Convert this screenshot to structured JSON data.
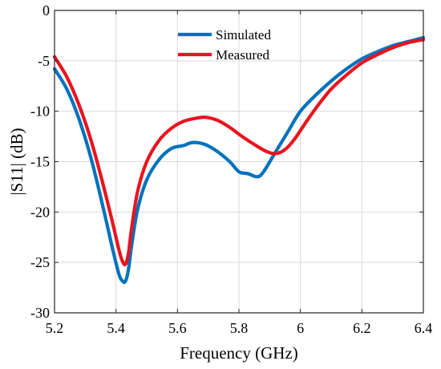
{
  "chart_data": {
    "type": "line",
    "xlabel": "Frequency (GHz)",
    "ylabel": "|S11| (dB)",
    "xlim": [
      5.2,
      6.4
    ],
    "ylim": [
      -30,
      0
    ],
    "xticks": [
      5.2,
      5.4,
      5.6,
      5.8,
      6.0,
      6.2,
      6.4
    ],
    "xtick_labels": [
      "5.2",
      "5.4",
      "5.6",
      "5.8",
      "6",
      "6.2",
      "6.4"
    ],
    "yticks": [
      0,
      -5,
      -10,
      -15,
      -20,
      -25,
      -30
    ],
    "ytick_labels": [
      "0",
      "-5",
      "-10",
      "-15",
      "-20",
      "-25",
      "-30"
    ],
    "grid": true,
    "legend_position": "top-center",
    "series": [
      {
        "name": "Simulated",
        "color": "#0072BD",
        "x": [
          5.2,
          5.24,
          5.28,
          5.32,
          5.36,
          5.39,
          5.41,
          5.42,
          5.43,
          5.44,
          5.45,
          5.47,
          5.5,
          5.54,
          5.58,
          5.62,
          5.65,
          5.69,
          5.73,
          5.77,
          5.8,
          5.83,
          5.86,
          5.88,
          5.92,
          5.96,
          6.0,
          6.05,
          6.1,
          6.15,
          6.2,
          6.25,
          6.3,
          6.35,
          6.4
        ],
        "y": [
          -5.8,
          -7.8,
          -10.8,
          -14.8,
          -19.8,
          -23.8,
          -26.2,
          -26.8,
          -26.9,
          -25.8,
          -23.5,
          -19.8,
          -16.8,
          -14.8,
          -13.7,
          -13.4,
          -13.1,
          -13.3,
          -14.0,
          -15.0,
          -16.0,
          -16.2,
          -16.5,
          -16.0,
          -14.0,
          -12.0,
          -10.0,
          -8.4,
          -7.0,
          -5.8,
          -4.8,
          -4.1,
          -3.5,
          -3.1,
          -2.7
        ]
      },
      {
        "name": "Measured",
        "color": "#E8141F",
        "x": [
          5.2,
          5.24,
          5.28,
          5.32,
          5.36,
          5.39,
          5.41,
          5.42,
          5.43,
          5.44,
          5.45,
          5.47,
          5.5,
          5.54,
          5.58,
          5.62,
          5.66,
          5.69,
          5.73,
          5.77,
          5.81,
          5.85,
          5.89,
          5.92,
          5.95,
          5.98,
          6.02,
          6.06,
          6.1,
          6.15,
          6.2,
          6.25,
          6.3,
          6.35,
          6.4
        ],
        "y": [
          -4.6,
          -6.6,
          -9.4,
          -13.0,
          -17.5,
          -21.2,
          -23.8,
          -24.8,
          -25.2,
          -24.2,
          -21.8,
          -18.0,
          -15.0,
          -12.9,
          -11.7,
          -11.0,
          -10.7,
          -10.6,
          -10.9,
          -11.6,
          -12.5,
          -13.3,
          -14.0,
          -14.2,
          -13.8,
          -12.8,
          -11.0,
          -9.3,
          -7.8,
          -6.4,
          -5.2,
          -4.4,
          -3.7,
          -3.2,
          -2.9
        ]
      }
    ]
  }
}
